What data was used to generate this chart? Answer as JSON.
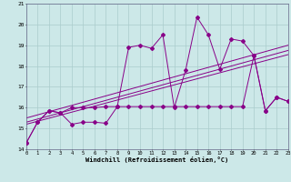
{
  "xlabel": "Windchill (Refroidissement éolien,°C)",
  "background_color": "#cce8e8",
  "grid_color": "#aacccc",
  "line_color": "#880088",
  "xlim": [
    0,
    23
  ],
  "ylim": [
    14,
    21
  ],
  "yticks": [
    14,
    15,
    16,
    17,
    18,
    19,
    20,
    21
  ],
  "xticks": [
    0,
    1,
    2,
    3,
    4,
    5,
    6,
    7,
    8,
    9,
    10,
    11,
    12,
    13,
    14,
    15,
    16,
    17,
    18,
    19,
    20,
    21,
    22,
    23
  ],
  "series_wiggly": {
    "x": [
      0,
      1,
      2,
      3,
      4,
      5,
      6,
      7,
      8,
      9,
      10,
      11,
      12,
      13,
      14,
      15,
      16,
      17,
      18,
      19,
      20,
      21,
      22,
      23
    ],
    "y": [
      14.3,
      15.3,
      15.85,
      15.75,
      15.2,
      15.3,
      15.3,
      15.25,
      16.05,
      18.9,
      19.0,
      18.85,
      19.5,
      16.0,
      17.8,
      20.35,
      19.5,
      17.85,
      19.3,
      19.2,
      18.5,
      15.85,
      16.5,
      16.3
    ]
  },
  "series_flat": {
    "x": [
      0,
      1,
      2,
      3,
      4,
      5,
      6,
      7,
      8,
      9,
      10,
      11,
      12,
      13,
      14,
      15,
      16,
      17,
      18,
      19,
      20,
      21,
      22,
      23
    ],
    "y": [
      14.3,
      15.3,
      15.85,
      15.75,
      16.0,
      16.0,
      16.0,
      16.05,
      16.05,
      16.05,
      16.05,
      16.05,
      16.05,
      16.05,
      16.05,
      16.05,
      16.05,
      16.05,
      16.05,
      16.05,
      18.5,
      15.85,
      16.5,
      16.3
    ]
  },
  "trend_lines": [
    {
      "x0": 0,
      "x1": 23,
      "y0": 15.2,
      "y1": 18.55
    },
    {
      "x0": 0,
      "x1": 23,
      "y0": 15.3,
      "y1": 18.75
    },
    {
      "x0": 0,
      "x1": 23,
      "y0": 15.5,
      "y1": 19.0
    }
  ]
}
